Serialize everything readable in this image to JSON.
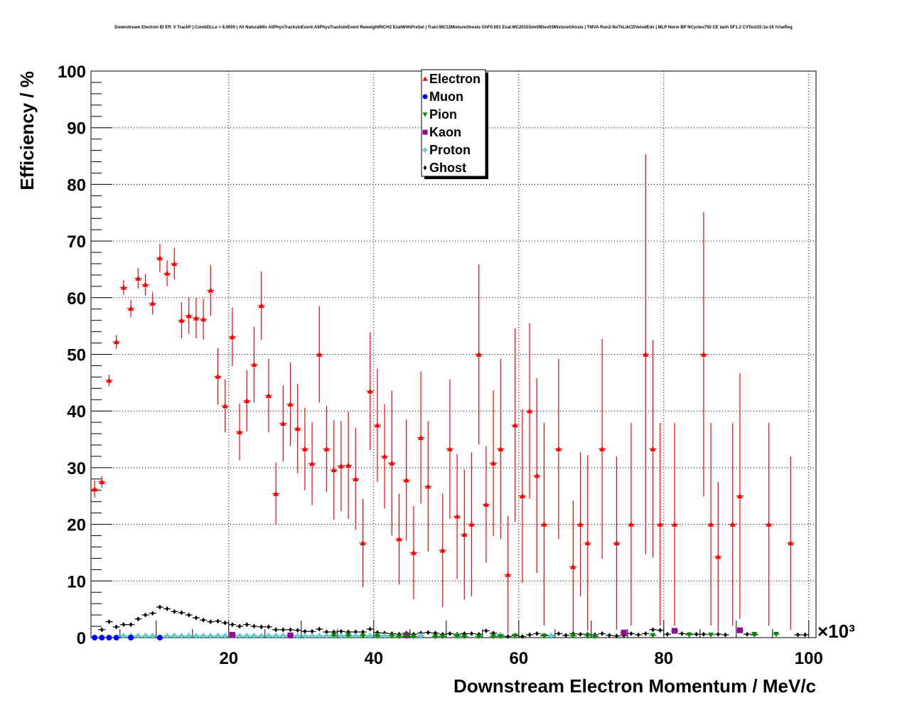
{
  "chart_data": {
    "type": "scatter",
    "title": "Downstream Electron ID Eff. V TrackP | CombDLLe > 6.0000 | All NaturalMix AllPhysTracksInEvent:AllPhysTracksInEvent ReweightRICH2 EvalWithPreSel | Train:MC12MixtureGhosts GhF0.001 Eval:MC2015Sim09Dev03MixtureGhosts | TMVA-Run2-NoTkLikCDVelodEdx | MLP Norm BP NCycles750 CE tanh SF1.2 CVTest15:1e-16 !UseReg",
    "xlabel": "Downstream Electron Momentum / MeV/c",
    "ylabel": "Efficiency / %",
    "x_multiplier_label": "×10³",
    "xlim": [
      1,
      101
    ],
    "ylim": [
      0,
      100
    ],
    "x_ticks": [
      20,
      40,
      60,
      80,
      100
    ],
    "y_ticks": [
      0,
      10,
      20,
      30,
      40,
      50,
      60,
      70,
      80,
      90,
      100
    ],
    "grid": true,
    "legend_position": "top-center",
    "series": [
      {
        "name": "Electron",
        "color": "#ff0000",
        "marker": "triangle-up",
        "x": [
          1.5,
          2.5,
          3.5,
          4.5,
          5.5,
          6.5,
          7.5,
          8.5,
          9.5,
          10.5,
          11.5,
          12.5,
          13.5,
          14.5,
          15.5,
          16.5,
          17.5,
          18.5,
          19.5,
          20.5,
          21.5,
          22.5,
          23.5,
          24.5,
          25.5,
          26.5,
          27.5,
          28.5,
          29.5,
          30.5,
          31.5,
          32.5,
          33.5,
          34.5,
          35.5,
          36.5,
          37.5,
          38.5,
          39.5,
          40.5,
          41.5,
          42.5,
          43.5,
          44.5,
          45.5,
          46.5,
          47.5,
          49.5,
          50.5,
          51.5,
          52.5,
          53.5,
          54.5,
          55.5,
          56.5,
          57.5,
          58.5,
          59.5,
          60.5,
          61.5,
          62.5,
          63.5,
          65.5,
          67.5,
          68.5,
          69.5,
          71.5,
          73.5,
          75.5,
          77.5,
          78.5,
          79.5,
          81.5,
          85.5,
          86.5,
          87.5,
          89.5,
          90.5,
          94.5,
          97.5
        ],
        "y": [
          26.2,
          27.5,
          45.4,
          52.2,
          61.8,
          58.1,
          63.4,
          62.3,
          59.0,
          67.0,
          64.3,
          66.0,
          56.0,
          56.8,
          56.4,
          56.2,
          61.3,
          46.1,
          40.9,
          53.1,
          36.3,
          41.8,
          48.2,
          58.6,
          42.7,
          25.4,
          37.8,
          41.2,
          36.9,
          33.3,
          30.7,
          50.0,
          33.3,
          29.6,
          30.3,
          30.4,
          28.0,
          16.7,
          43.5,
          37.5,
          32.0,
          30.8,
          17.4,
          27.8,
          15.0,
          35.3,
          26.7,
          15.4,
          33.3,
          21.4,
          18.2,
          20.0,
          50.0,
          23.5,
          30.8,
          33.3,
          11.1,
          37.5,
          25.0,
          40.0,
          28.6,
          20.0,
          33.3,
          12.5,
          20.0,
          16.7,
          33.3,
          16.7,
          20.0,
          50.0,
          33.3,
          20.0,
          20.0,
          50.0,
          20.0,
          14.3,
          20.0,
          25.0,
          20.0,
          16.7
        ],
        "yerr": [
          1.5,
          1.0,
          1.0,
          1.2,
          1.3,
          1.5,
          1.8,
          1.9,
          2.0,
          2.5,
          2.3,
          2.8,
          3.2,
          3.2,
          3.6,
          3.6,
          4.5,
          5.0,
          4.7,
          5.2,
          5.0,
          5.4,
          6.7,
          6.0,
          6.5,
          5.5,
          6.7,
          7.4,
          7.9,
          7.3,
          7.3,
          8.5,
          7.6,
          8.8,
          8.0,
          9.5,
          9.0,
          7.8,
          10.4,
          10.0,
          9.2,
          12.8,
          8.0,
          10.7,
          8.2,
          11.7,
          11.5,
          10.0,
          12.3,
          11.0,
          11.5,
          12.7,
          15.9,
          10.3,
          12.9,
          15.9,
          10.4,
          17.1,
          15.3,
          15.5,
          17.2,
          17.9,
          15.9,
          11.7,
          12.7,
          15.5,
          19.4,
          15.3,
          17.9,
          35.3,
          19.2,
          17.9,
          17.9,
          25.1,
          17.9,
          13.2,
          17.9,
          21.7,
          17.9,
          15.3
        ]
      },
      {
        "name": "Muon",
        "color": "#0000ff",
        "marker": "circle",
        "x": [
          1.5,
          2.5,
          3.5,
          4.5,
          6.5,
          10.5
        ],
        "y": [
          0,
          0,
          0,
          0,
          0,
          0
        ]
      },
      {
        "name": "Pion",
        "color": "#008800",
        "marker": "triangle-down",
        "x": [
          34.5,
          36.5,
          38.5,
          40.5,
          42.5,
          43.5,
          44.5,
          45.5,
          48.5,
          49.5,
          51.5,
          52.5,
          54.5,
          56.5,
          57.5,
          59.5,
          63.5,
          67.5,
          69.5,
          70.5,
          78.5,
          83.5,
          86.5,
          92.5,
          95.5
        ],
        "y": [
          0.4,
          0.4,
          0.3,
          0.3,
          0.3,
          0.2,
          0.2,
          0.2,
          0.2,
          0.2,
          0.3,
          0.2,
          0.2,
          0.2,
          0.2,
          0.3,
          0.3,
          0.3,
          0.3,
          0.2,
          0.4,
          0.5,
          0.5,
          0.6,
          0.6
        ]
      },
      {
        "name": "Kaon",
        "color": "#990099",
        "marker": "square",
        "x": [
          20.5,
          28.5,
          44.5,
          74.5,
          81.5,
          90.5
        ],
        "y": [
          0.5,
          0.4,
          0.4,
          0.9,
          1.2,
          1.3
        ]
      },
      {
        "name": "Proton",
        "color": "#66cccc",
        "marker": "cross",
        "x": [
          5.5,
          6.5,
          7.5,
          8.5,
          9.5,
          11.5,
          12.5,
          13.5,
          14.5,
          15.5,
          16.5,
          17.5,
          18.5,
          19.5,
          20.5,
          21.5,
          22.5,
          23.5,
          24.5,
          25.5,
          26.5,
          27.5,
          28.5,
          29.5,
          30.5,
          31.5,
          32.5,
          33.5,
          34.5,
          35.5,
          36.5,
          37.5,
          39.5,
          40.5,
          41.5,
          46.5,
          51.5,
          57.5,
          64.5
        ],
        "y": [
          0.3,
          0.3,
          0.3,
          0.3,
          0.3,
          0.3,
          0.3,
          0.3,
          0.3,
          0.3,
          0.3,
          0.3,
          0.3,
          0.3,
          0.3,
          0.3,
          0.3,
          0.3,
          0.3,
          0.3,
          0.3,
          0.3,
          0.3,
          0.3,
          0.3,
          0.3,
          0.3,
          0.3,
          0.3,
          0.3,
          0.3,
          0.3,
          0.3,
          0.3,
          0.3,
          0.3,
          0.3,
          0.4,
          0.3
        ]
      },
      {
        "name": "Ghost",
        "color": "#000000",
        "marker": "diamond",
        "x": [
          2.5,
          3.5,
          4.5,
          5.5,
          6.5,
          7.5,
          8.5,
          9.5,
          10.5,
          11.5,
          12.5,
          13.5,
          14.5,
          15.5,
          16.5,
          17.5,
          18.5,
          19.5,
          20.5,
          21.5,
          22.5,
          23.5,
          24.5,
          25.5,
          26.5,
          27.5,
          28.5,
          29.5,
          30.5,
          31.5,
          32.5,
          33.5,
          34.5,
          35.5,
          36.5,
          37.5,
          38.5,
          39.5,
          40.5,
          41.5,
          42.5,
          43.5,
          44.5,
          45.5,
          46.5,
          47.5,
          48.5,
          49.5,
          50.5,
          51.5,
          52.5,
          53.5,
          54.5,
          55.5,
          56.5,
          57.5,
          58.5,
          59.5,
          60.5,
          61.5,
          62.5,
          63.5,
          64.5,
          65.5,
          66.5,
          67.5,
          68.5,
          69.5,
          70.5,
          71.5,
          72.5,
          73.5,
          74.5,
          75.5,
          76.5,
          77.5,
          78.5,
          79.5,
          80.5,
          82.5,
          83.5,
          84.5,
          85.5,
          87.5,
          88.5,
          91.5,
          92.5,
          98.5,
          99.5
        ],
        "y": [
          1.4,
          2.8,
          1.9,
          2.3,
          2.3,
          3.3,
          4.0,
          4.3,
          5.4,
          5.1,
          4.6,
          4.4,
          4.0,
          3.5,
          3.1,
          2.8,
          2.9,
          2.6,
          2.3,
          2.0,
          2.3,
          2.0,
          1.9,
          1.9,
          1.4,
          1.4,
          1.4,
          1.3,
          1.1,
          1.1,
          1.5,
          1.0,
          1.0,
          1.1,
          1.0,
          1.0,
          1.0,
          1.5,
          0.9,
          0.8,
          0.7,
          0.6,
          0.8,
          0.6,
          0.8,
          0.9,
          0.8,
          0.6,
          0.7,
          0.6,
          0.7,
          0.7,
          0.6,
          1.2,
          0.8,
          0.5,
          0.2,
          0.4,
          0.2,
          0.5,
          0.7,
          0.4,
          0.4,
          0.7,
          0.4,
          0.7,
          0.6,
          0.6,
          0.5,
          0.7,
          0.4,
          0.3,
          0.4,
          0.7,
          0.5,
          0.7,
          1.4,
          1.3,
          0.6,
          0.7,
          0.6,
          0.6,
          0.6,
          0.6,
          0.5,
          0.6,
          0.5,
          0.5,
          0.5
        ]
      }
    ]
  }
}
